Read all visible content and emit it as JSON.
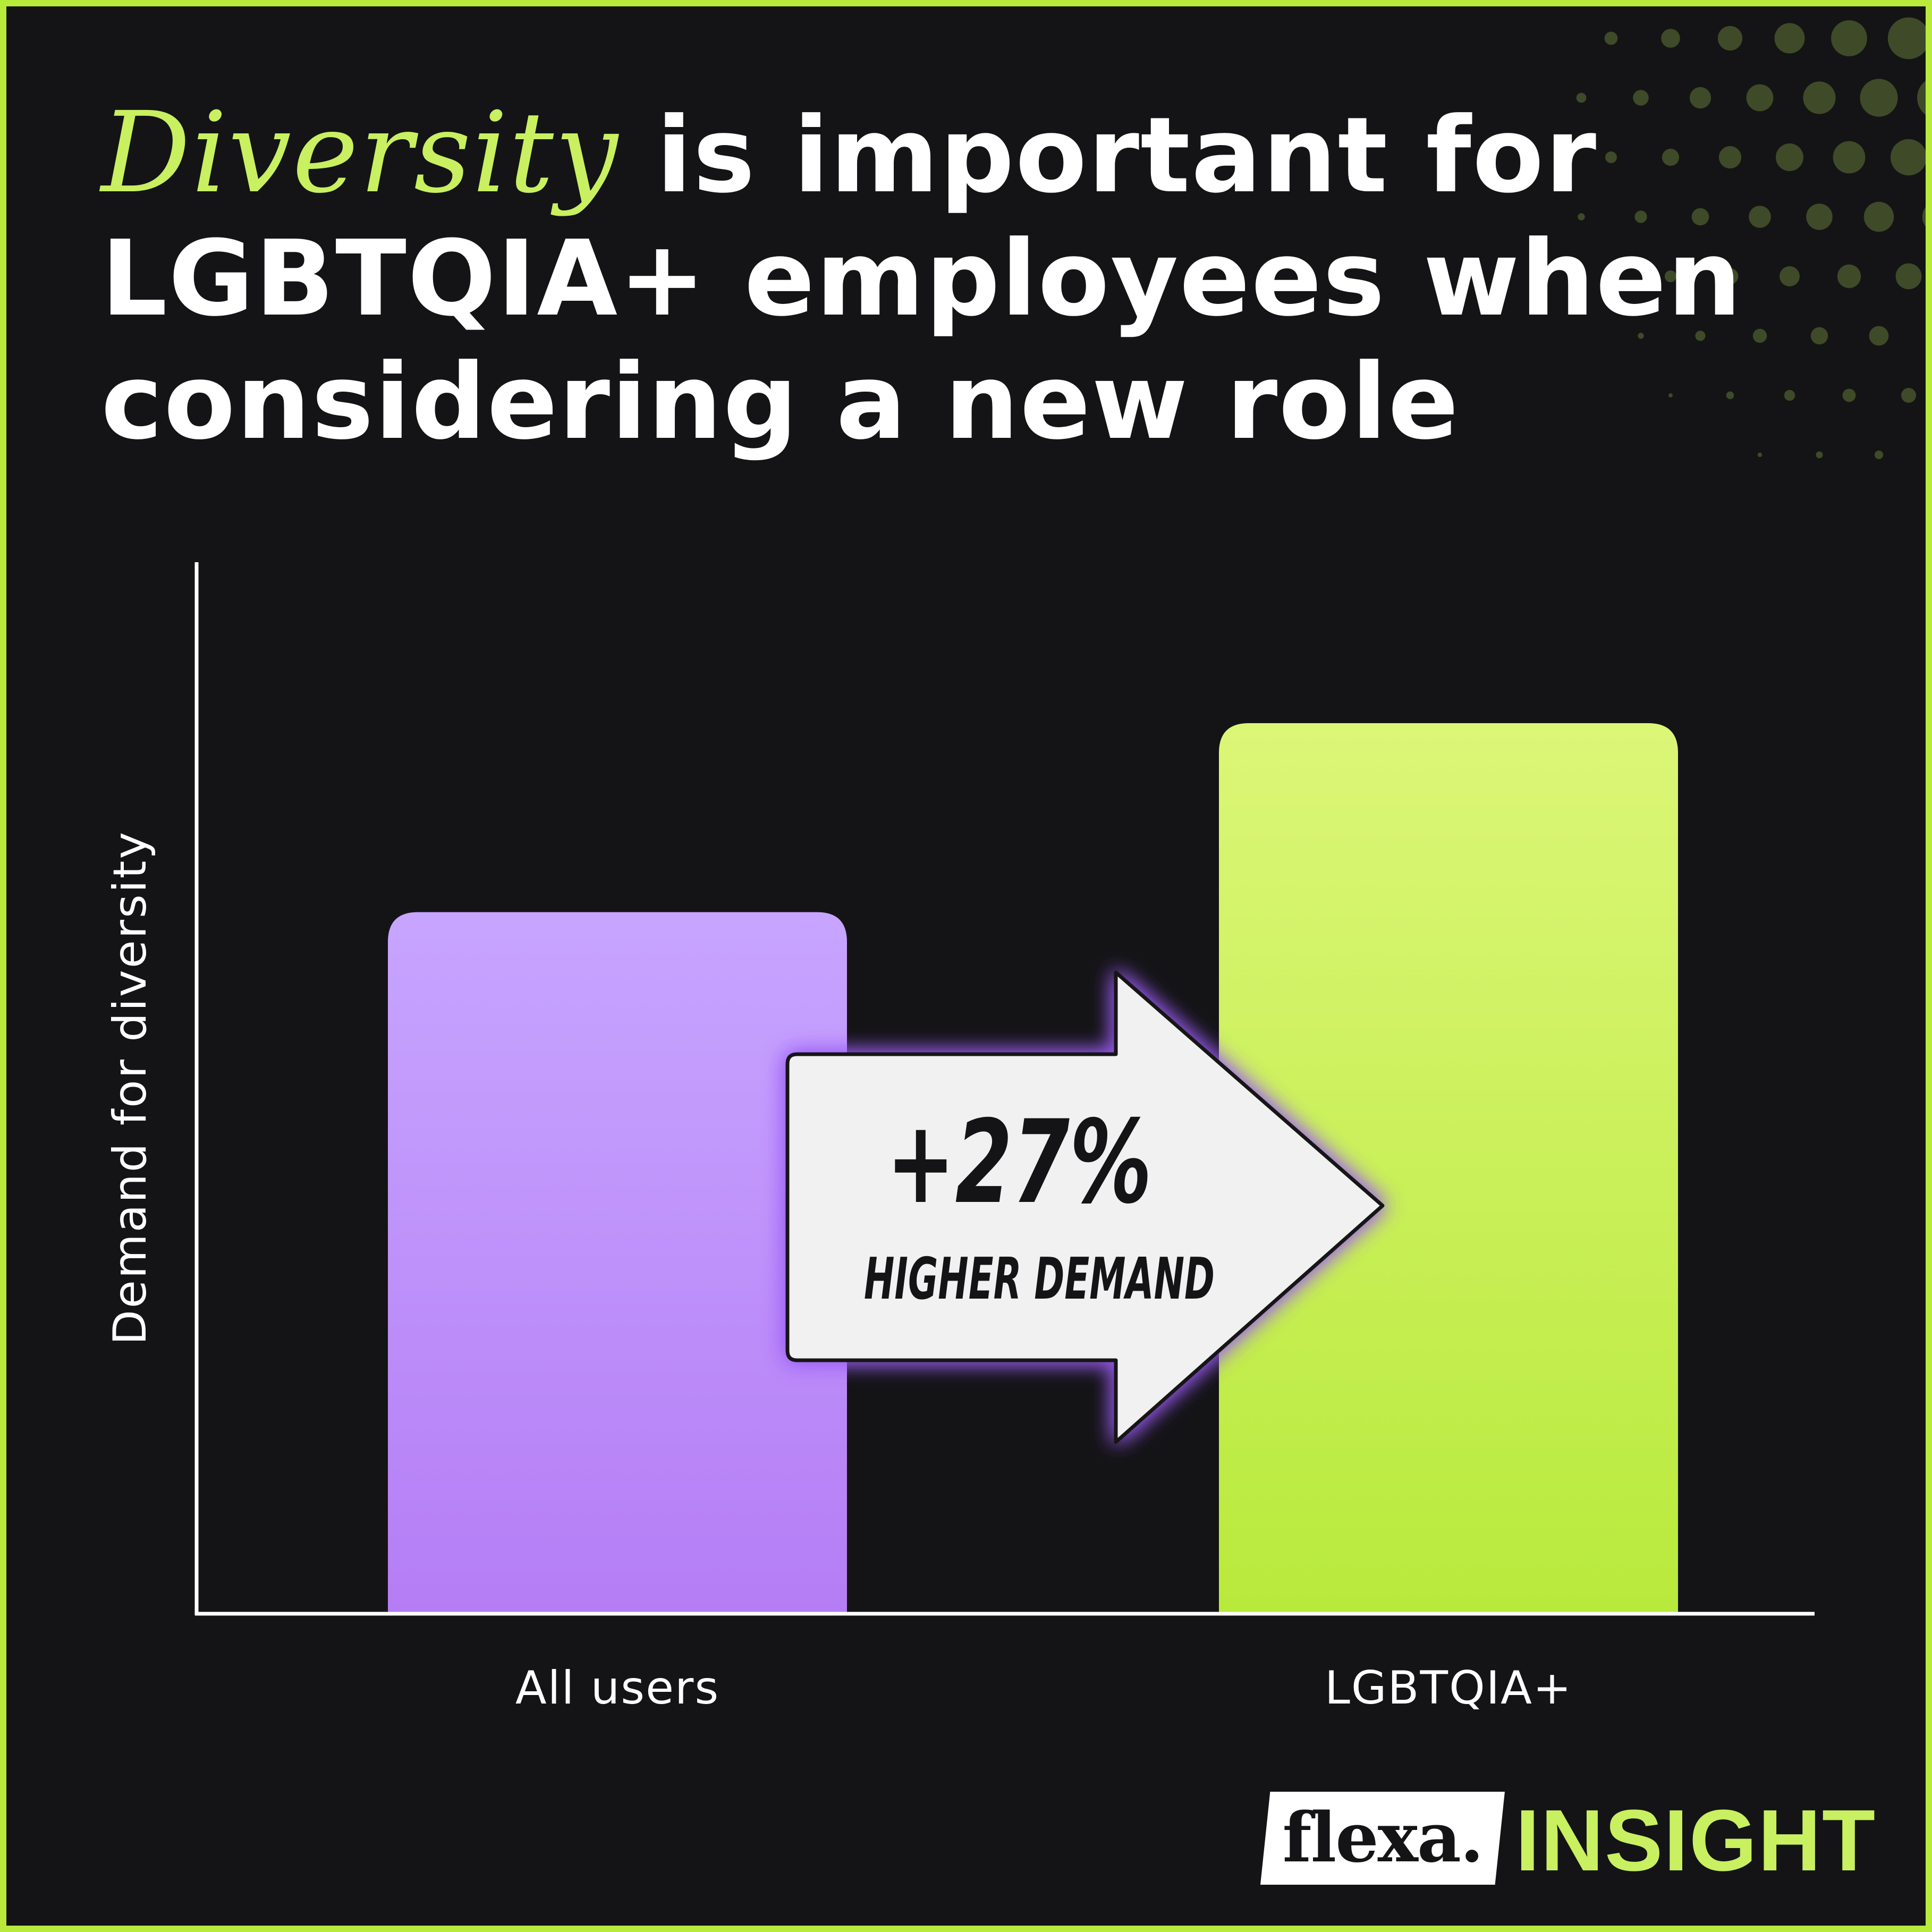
{
  "title": {
    "accent": "Diversity",
    "line1_rest": " is important for",
    "line2": "LGBTQIA+ employees when",
    "line3": "considering a new role"
  },
  "colors": {
    "background": "#141416",
    "border": "#b8ea3c",
    "accent_text": "#c8f060",
    "bar_all_users_top": "#c7a5ff",
    "bar_all_users_bottom": "#b57df5",
    "bar_lgbtqia_top": "#dcf677",
    "bar_lgbtqia_bottom": "#b8ea3c",
    "callout_fill": "#f1f1f1",
    "callout_glow": "#9b5cf6"
  },
  "chart_data": {
    "type": "bar",
    "categories": [
      "All users",
      "LGBTQIA+"
    ],
    "values": [
      100,
      127
    ],
    "ylabel": "Demand for diversity",
    "xlabel": "",
    "ylim": [
      0,
      150
    ],
    "grid": false,
    "annotation": {
      "value": "+27%",
      "label": "HIGHER DEMAND"
    }
  },
  "brand": {
    "logo_text": "flexa.",
    "suffix": "INSIGHT"
  }
}
